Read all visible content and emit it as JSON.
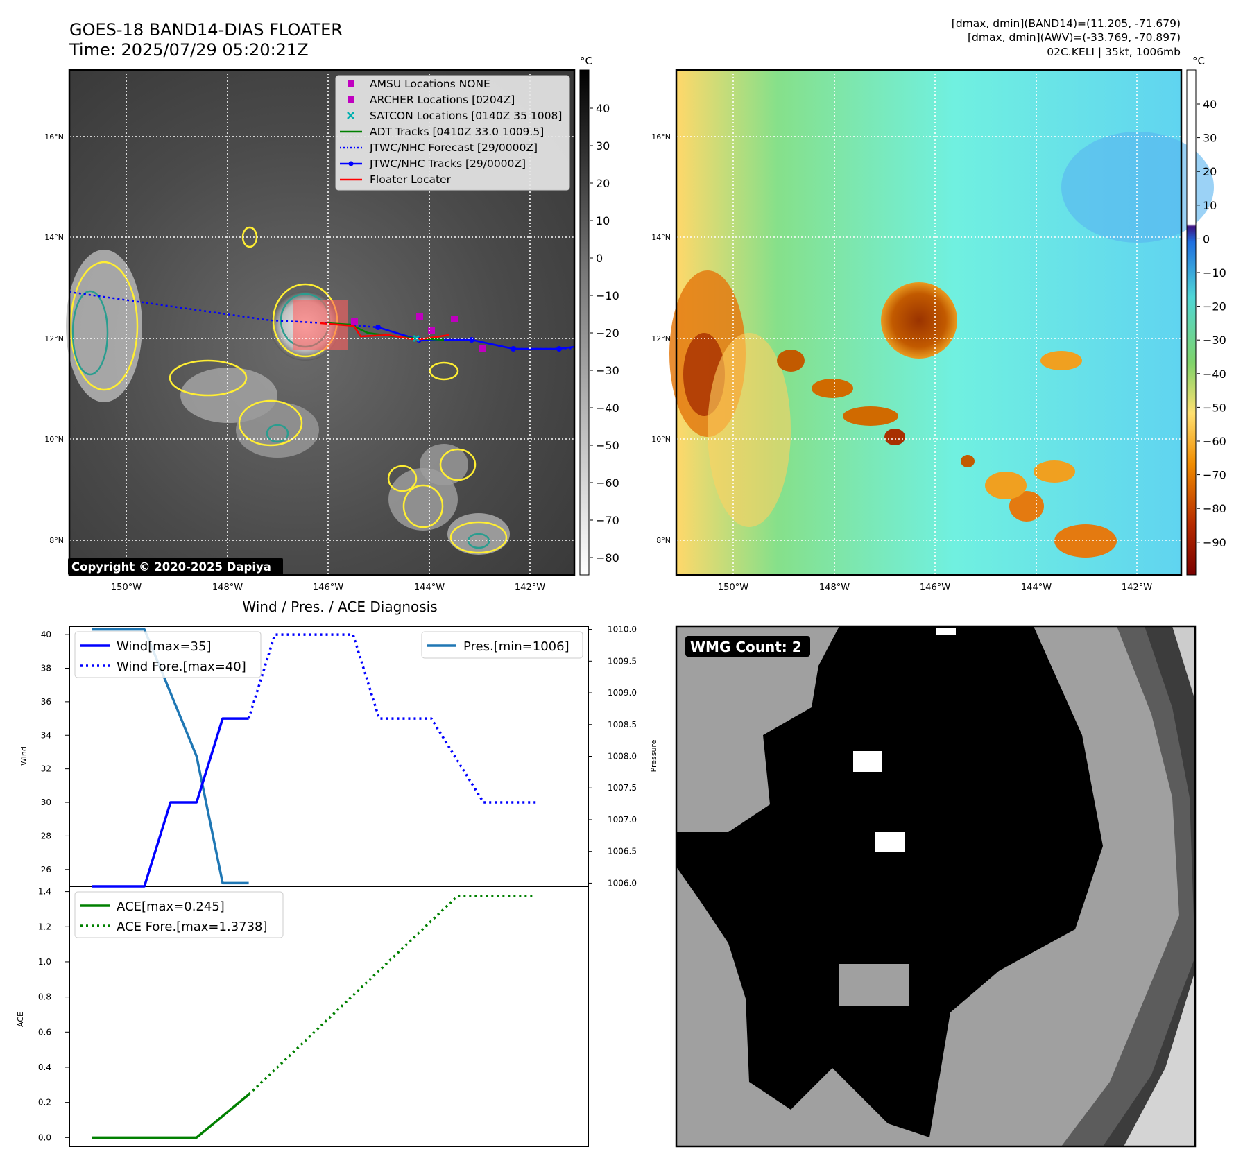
{
  "header": {
    "title_line1": "GOES-18 BAND14-DIAS FLOATER",
    "title_line2": "Time: 2025/07/29 05:20:21Z",
    "info_line1": "[dmax, dmin](BAND14)=(11.205, -71.679)",
    "info_line2": "[dmax, dmin](AWV)=(-33.769, -70.897)",
    "info_line3": "02C.KELI | 35kt, 1006mb"
  },
  "ir_panel": {
    "copyright": "Copyright © 2020-2025 Dapiya",
    "colorbar_unit": "°C",
    "colorbar_ticks": [
      "40",
      "30",
      "20",
      "10",
      "0",
      "−10",
      "−20",
      "−30",
      "−40",
      "−50",
      "−60",
      "−70",
      "−80"
    ],
    "legend": [
      {
        "label": "AMSU Locations NONE",
        "color": "#c000c0",
        "marker": "square"
      },
      {
        "label": "ARCHER Locations [0204Z]",
        "color": "#c000c0",
        "marker": "square"
      },
      {
        "label": "SATCON Locations [0140Z 35 1008]",
        "color": "#00b0b0",
        "marker": "x"
      },
      {
        "label": "ADT Tracks [0410Z 33.0 1009.5]",
        "color": "#008000",
        "marker": "line"
      },
      {
        "label": "JTWC/NHC Forecast [29/0000Z]",
        "color": "#0000ff",
        "marker": "dotted"
      },
      {
        "label": "JTWC/NHC Tracks [29/0000Z]",
        "color": "#0000ff",
        "marker": "line-dot"
      },
      {
        "label": "Floater Locater",
        "color": "#ff0000",
        "marker": "line"
      }
    ]
  },
  "wv_panel": {
    "colorbar_unit": "°C",
    "colorbar_ticks": [
      "40",
      "30",
      "20",
      "10",
      "0",
      "−10",
      "−20",
      "−30",
      "−40",
      "−50",
      "−60",
      "−70",
      "−80",
      "−90"
    ]
  },
  "map_axes": {
    "lat_labels": [
      "16°N",
      "14°N",
      "12°N",
      "10°N",
      "8°N"
    ],
    "lon_labels": [
      "150°W",
      "148°W",
      "146°W",
      "144°W",
      "142°W"
    ]
  },
  "wmg_panel": {
    "label": "WMG Count: 2"
  },
  "colors": {
    "wind": "#0000ff",
    "pressure": "#1f77b4",
    "ace": "#008000",
    "contour_yellow": "#ffee33",
    "contour_teal": "#2a9d8f"
  },
  "chart_data": {
    "type": "line",
    "title": "Wind / Pres. / ACE Diagnosis",
    "top_panel": {
      "ylabel": "Wind",
      "ylim": [
        25,
        40.5
      ],
      "yticks": [
        "26",
        "28",
        "30",
        "32",
        "34",
        "36",
        "38",
        "40"
      ],
      "y2label": "Pressure",
      "y2lim": [
        1005.95,
        1010.05
      ],
      "y2ticks": [
        "1006.0",
        "1006.5",
        "1007.0",
        "1007.5",
        "1008.0",
        "1008.5",
        "1009.0",
        "1009.5",
        "1010.0"
      ],
      "series": [
        {
          "name": "Wind[max=35]",
          "style": "solid",
          "axis": "left",
          "values": [
            25,
            25,
            30,
            30,
            35,
            35
          ]
        },
        {
          "name": "Wind Fore.[max=40]",
          "style": "dotted",
          "axis": "left",
          "values": [
            35,
            40,
            40,
            35,
            35,
            30,
            30
          ]
        },
        {
          "name": "Pres.[min=1006]",
          "style": "solid",
          "axis": "right",
          "values": [
            1010,
            1010,
            1008,
            1006,
            1006
          ]
        }
      ]
    },
    "bottom_panel": {
      "ylabel": "ACE",
      "ylim": [
        -0.05,
        1.43
      ],
      "yticks": [
        "0.0",
        "0.2",
        "0.4",
        "0.6",
        "0.8",
        "1.0",
        "1.2",
        "1.4"
      ],
      "series": [
        {
          "name": "ACE[max=0.245]",
          "style": "solid",
          "values": [
            0,
            0,
            0,
            0,
            0.245
          ]
        },
        {
          "name": "ACE Fore.[max=1.3738]",
          "style": "dotted",
          "values": [
            0.245,
            1.3738,
            1.3738
          ]
        }
      ]
    }
  }
}
